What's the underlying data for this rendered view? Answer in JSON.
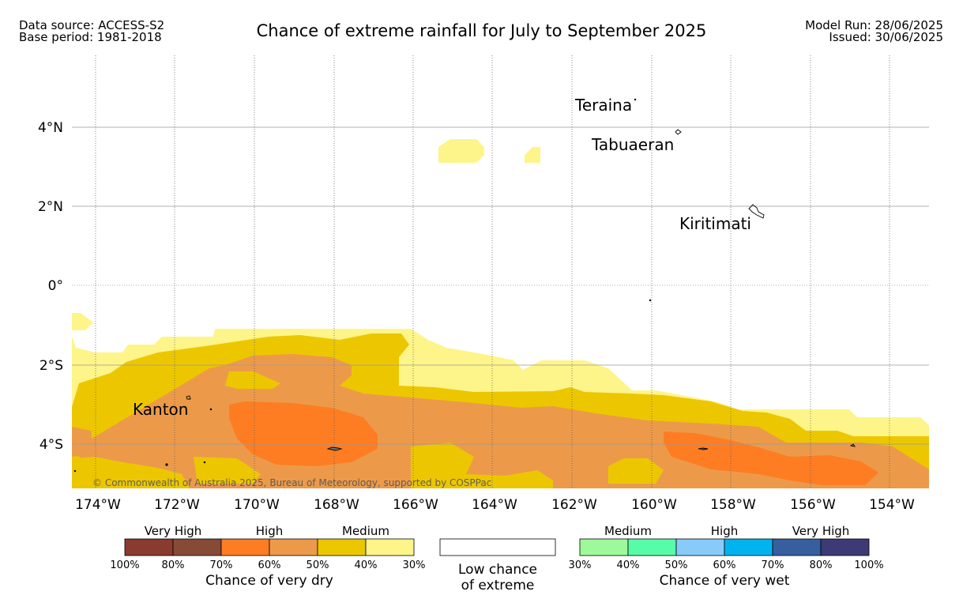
{
  "header": {
    "data_source": "Data source: ACCESS-S2",
    "base_period": "Base period: 1981-2018",
    "title": "Chance of extreme rainfall for July to September 2025",
    "model_run": "Model Run: 28/06/2025",
    "issued": "Issued: 30/06/2025"
  },
  "map": {
    "lon_ticks": [
      "174°W",
      "172°W",
      "170°W",
      "168°W",
      "166°W",
      "164°W",
      "162°W",
      "160°W",
      "158°W",
      "156°W",
      "154°W"
    ],
    "lat_ticks": [
      "4°N",
      "2°N",
      "0°",
      "2°S",
      "4°S"
    ],
    "places": {
      "teraina": "Teraina",
      "tabuaeran": "Tabuaeran",
      "kiritimati": "Kiritimati",
      "kanton": "Kanton"
    },
    "copyright": "© Commonwealth of Australia 2025, Bureau of Meteorology, supported by COSPPac"
  },
  "legend": {
    "dry": {
      "groups": [
        "Very High",
        "High",
        "Medium"
      ],
      "ticks": [
        "100%",
        "80%",
        "70%",
        "60%",
        "50%",
        "40%",
        "30%"
      ],
      "colors": [
        "#8b3a2f",
        "#874a37",
        "#fe7d22",
        "#ec9a4a",
        "#ecc700",
        "#fdf58a"
      ],
      "caption": "Chance of very dry"
    },
    "low": {
      "line1": "Low chance",
      "line2": "of extreme"
    },
    "wet": {
      "groups": [
        "Medium",
        "High",
        "Very High"
      ],
      "ticks": [
        "30%",
        "40%",
        "50%",
        "60%",
        "70%",
        "80%",
        "100%"
      ],
      "colors": [
        "#9ef99b",
        "#57fca9",
        "#88cbf9",
        "#00b3ef",
        "#375f9f",
        "#3e3a76"
      ],
      "caption": "Chance of very wet"
    }
  }
}
